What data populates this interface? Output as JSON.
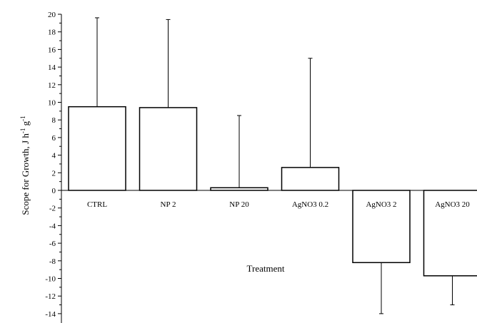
{
  "chart_data": {
    "type": "bar",
    "categories": [
      "CTRL",
      "NP 2",
      "NP 20",
      "AgNO3 0.2",
      "AgNO3 2",
      "AgNO3 20"
    ],
    "values": [
      9.5,
      9.4,
      0.3,
      2.6,
      -8.2,
      -9.7
    ],
    "error_high": [
      19.6,
      19.4,
      8.5,
      15.0,
      -8.2,
      -9.7
    ],
    "error_low": [
      9.5,
      9.4,
      0.3,
      2.6,
      -14.0,
      -13.0
    ],
    "xlabel": "Treatment",
    "ylabel_main": "Scope for Growth, J h",
    "ylabel_sup1": "-1",
    "ylabel_mid": " g",
    "ylabel_sup2": "-1",
    "ylim": [
      -14.5,
      20
    ],
    "yticks": [
      "20",
      "18",
      "16",
      "14",
      "12",
      "10",
      "8",
      "6",
      "4",
      "2",
      "0",
      "-2",
      "-4",
      "-6",
      "-8",
      "-10",
      "-12",
      "-14"
    ],
    "ytick_values": [
      20,
      18,
      16,
      14,
      12,
      10,
      8,
      6,
      4,
      2,
      0,
      -2,
      -4,
      -6,
      -8,
      -10,
      -12,
      -14
    ],
    "bar_fill": "#ffffff",
    "bar_stroke": "#000000",
    "grid": false,
    "legend": "none"
  }
}
